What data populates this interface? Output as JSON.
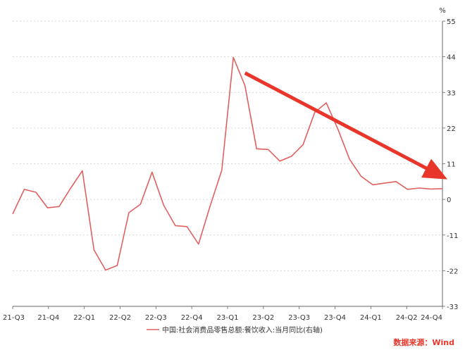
{
  "chart_data": {
    "type": "line",
    "unit": "%",
    "y_axis_side": "right",
    "ylim": [
      -33,
      55
    ],
    "yticks": [
      55,
      44,
      33,
      22,
      11,
      0,
      -11,
      -22,
      -33
    ],
    "grid": "horizontal dashed",
    "x_tick_labels": [
      "21-Q3",
      "21-Q4",
      "22-Q1",
      "22-Q2",
      "22-Q3",
      "22-Q4",
      "23-Q1",
      "23-Q2",
      "23-Q3",
      "23-Q4",
      "24-Q1",
      "24-Q2",
      "24-Q4"
    ],
    "series": [
      {
        "name": "中国:社会消费品零售总额:餐饮收入:当月同比(右轴)",
        "color": "#e06060",
        "values": [
          -4.5,
          3.1,
          2.2,
          -2.6,
          -2.2,
          3.5,
          8.8,
          -15.6,
          -21.8,
          -20.4,
          -4.1,
          -1.5,
          8.4,
          -1.8,
          -8.1,
          -8.4,
          -13.8,
          -2.0,
          9.0,
          43.8,
          35.1,
          15.6,
          15.4,
          11.8,
          13.3,
          16.9,
          26.8,
          29.8,
          21.7,
          12.4,
          7.1,
          4.5,
          5.0,
          5.5,
          3.1,
          3.5,
          3.2,
          3.3
        ]
      }
    ],
    "annotation_arrow": {
      "color": "#e8362a",
      "from": [
        20,
        39
      ],
      "to": [
        37,
        7
      ]
    },
    "legend_position": "bottom",
    "source": "数据来源：Wind",
    "source_color": "#e8362a"
  }
}
